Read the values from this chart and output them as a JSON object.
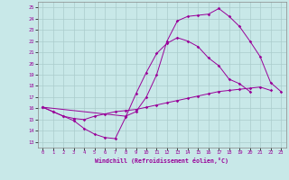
{
  "xlabel": "Windchill (Refroidissement éolien,°C)",
  "bg_color": "#c8e8e8",
  "line_color": "#990099",
  "grid_color": "#aacccc",
  "xlim": [
    -0.5,
    23.5
  ],
  "ylim": [
    12.5,
    25.5
  ],
  "xticks": [
    0,
    1,
    2,
    3,
    4,
    5,
    6,
    7,
    8,
    9,
    10,
    11,
    12,
    13,
    14,
    15,
    16,
    17,
    18,
    19,
    20,
    21,
    22,
    23
  ],
  "yticks": [
    13,
    14,
    15,
    16,
    17,
    18,
    19,
    20,
    21,
    22,
    23,
    24,
    25
  ],
  "series": [
    [
      16.1,
      15.7,
      15.3,
      14.9,
      14.2,
      13.7,
      13.4,
      13.3,
      15.2,
      17.3,
      19.2,
      20.9,
      21.8,
      22.3,
      22.0,
      21.5,
      20.5,
      19.8,
      18.6,
      18.2,
      17.5,
      null,
      null,
      null
    ],
    [
      16.1,
      15.7,
      15.3,
      15.1,
      15.0,
      15.3,
      15.5,
      15.7,
      15.8,
      15.9,
      16.1,
      16.3,
      16.5,
      16.7,
      16.9,
      17.1,
      17.3,
      17.5,
      17.6,
      17.7,
      17.8,
      17.9,
      17.6,
      null
    ],
    [
      16.1,
      null,
      null,
      null,
      null,
      null,
      null,
      null,
      15.3,
      15.7,
      17.0,
      19.0,
      22.0,
      23.8,
      24.2,
      24.3,
      24.4,
      24.9,
      24.2,
      23.3,
      22.0,
      20.6,
      18.3,
      17.5
    ]
  ]
}
